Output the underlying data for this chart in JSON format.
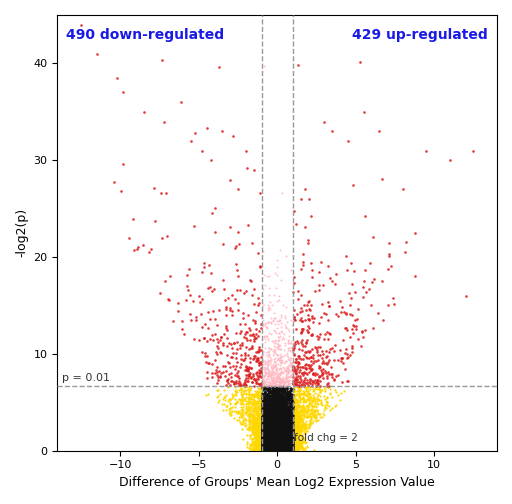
{
  "title": "",
  "xlabel": "Difference of Groups' Mean Log2 Expression Value",
  "ylabel": "-log2(p)",
  "xlim": [
    -14,
    14
  ],
  "ylim": [
    0,
    45
  ],
  "xticks": [
    -10,
    -5,
    0,
    5,
    10
  ],
  "yticks": [
    0,
    10,
    20,
    30,
    40
  ],
  "p_threshold": 6.64,
  "fc_threshold": 1.0,
  "n_points": 12000,
  "label_down": "490 down-regulated",
  "label_up": "429 up-regulated",
  "label_p": "p = 0.01",
  "label_fc": "fold chg = 2",
  "color_black": "#111111",
  "color_yellow": "#FFD700",
  "color_pink": "#FFB6C1",
  "color_red": "#DD2222",
  "bg_color": "#FFFFFF",
  "text_color_annot": "#1A1AE6",
  "seed": 42
}
